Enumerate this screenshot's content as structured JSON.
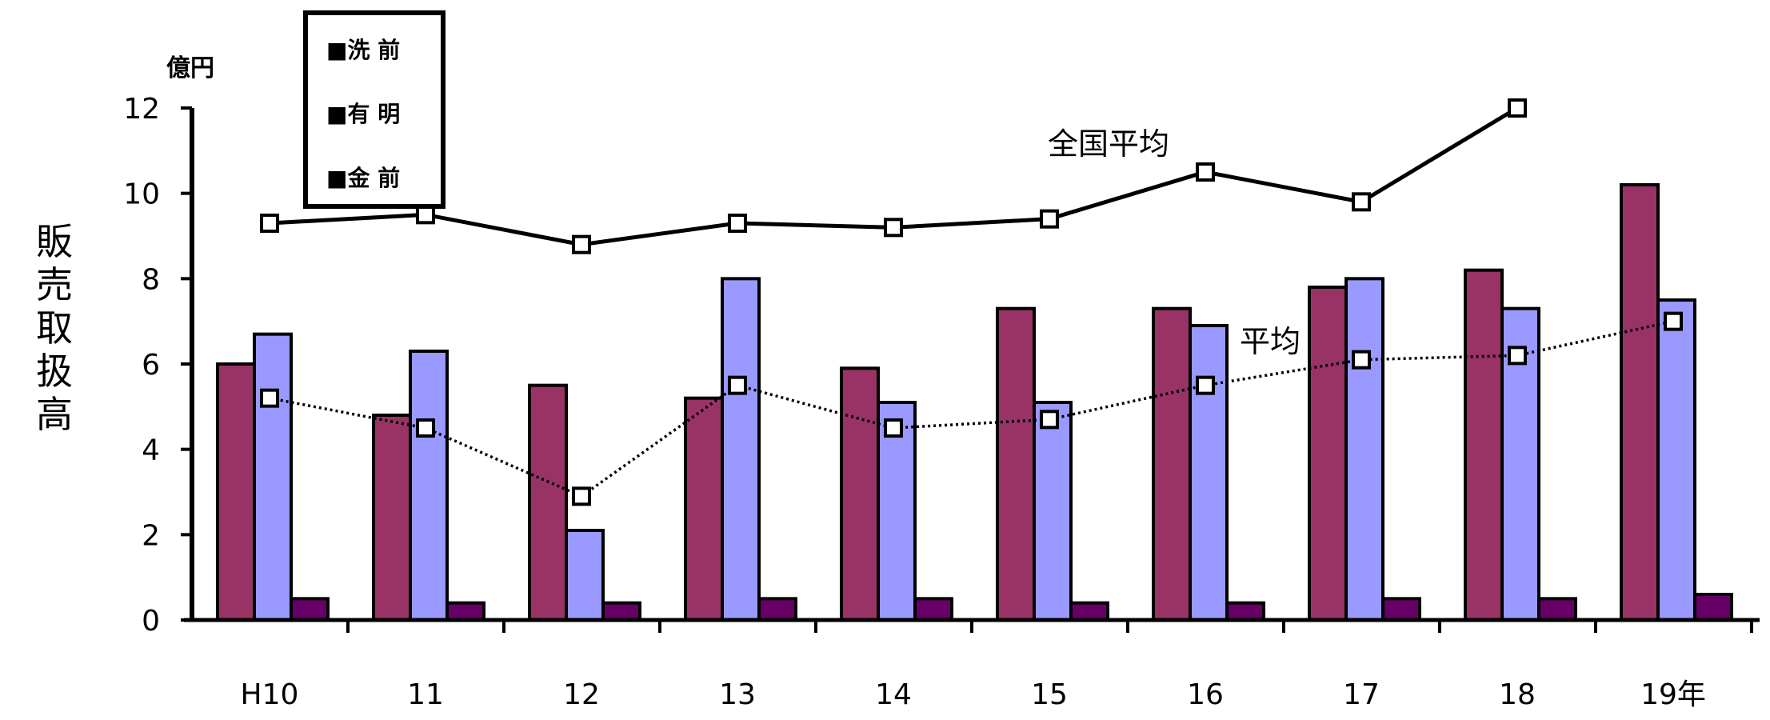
{
  "chart_data": {
    "type": "bar",
    "unit_label": "億円",
    "ylabel": "販売取扱高",
    "ylim": [
      0,
      12
    ],
    "yticks": [
      "0",
      "2",
      "4",
      "6",
      "8",
      "10",
      "12"
    ],
    "categories": [
      "H10",
      "11",
      "12",
      "13",
      "14",
      "15",
      "16",
      "17",
      "18",
      "19年"
    ],
    "legend": {
      "position": "top-left",
      "entries": [
        "■洗 前",
        "■有 明",
        "■金 前"
      ]
    },
    "series": [
      {
        "name": "洗 前",
        "type": "bar",
        "color": "#993366",
        "values": [
          6.0,
          4.8,
          5.5,
          5.2,
          5.9,
          7.3,
          7.3,
          7.8,
          8.2,
          10.2
        ]
      },
      {
        "name": "有 明",
        "type": "bar",
        "color": "#9999ff",
        "values": [
          6.7,
          6.3,
          2.1,
          8.0,
          5.1,
          5.1,
          6.9,
          8.0,
          7.3,
          7.5
        ]
      },
      {
        "name": "金 前",
        "type": "bar",
        "color": "#660066",
        "values": [
          0.5,
          0.4,
          0.4,
          0.5,
          0.5,
          0.4,
          0.4,
          0.5,
          0.5,
          0.6
        ]
      },
      {
        "name": "全国平均",
        "type": "line",
        "values": [
          9.3,
          9.5,
          8.8,
          9.3,
          9.2,
          9.4,
          10.5,
          9.8,
          12.0,
          null
        ]
      },
      {
        "name": "平均",
        "type": "line",
        "values": [
          5.2,
          4.5,
          2.9,
          5.5,
          4.5,
          4.7,
          5.5,
          6.1,
          6.2,
          7.0
        ]
      }
    ],
    "annotations": [
      "全国平均",
      "平均"
    ]
  }
}
